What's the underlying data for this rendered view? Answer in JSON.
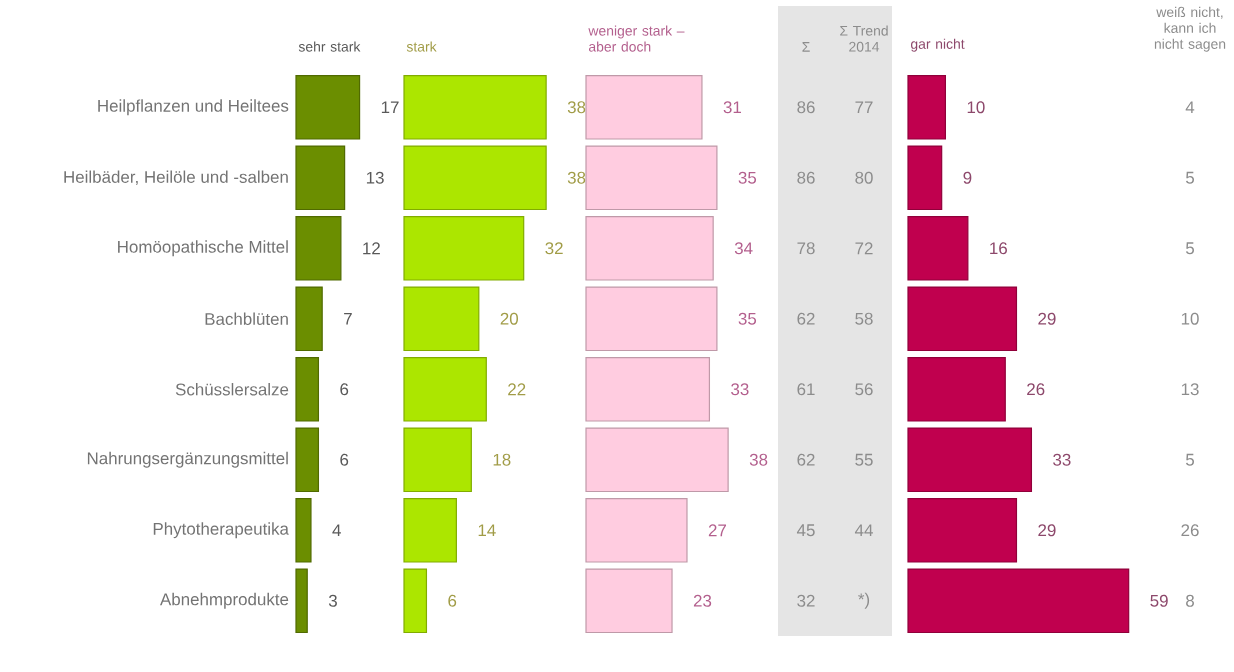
{
  "chart_data": [
    {
      "type": "bar",
      "orientation": "horizontal",
      "title": "sehr stark",
      "categories": [
        "Heilpflanzen und Heiltees",
        "Heilbäder, Heilöle und -salben",
        "Homöopathische Mittel",
        "Bachblüten",
        "Schüsslersalze",
        "Nahrungsergänzungsmittel",
        "Phytotherapeutika",
        "Abnehmprodukte"
      ],
      "values": [
        17,
        13,
        12,
        7,
        6,
        6,
        4,
        3
      ],
      "color": "#6b8e00",
      "data_labels": true,
      "tick_labels": "y"
    },
    {
      "type": "bar",
      "orientation": "horizontal",
      "title": "stark",
      "categories": [
        null,
        null,
        null,
        null,
        null,
        null,
        null,
        null
      ],
      "values": [
        38,
        38,
        32,
        20,
        22,
        18,
        14,
        6
      ],
      "color": "#ace600",
      "data_labels": true
    },
    {
      "type": "bar",
      "orientation": "horizontal",
      "title": "weniger stark – aber doch",
      "categories": [
        null,
        null,
        null,
        null,
        null,
        null,
        null,
        null
      ],
      "values": [
        31,
        35,
        34,
        35,
        33,
        38,
        27,
        23
      ],
      "color": "#ffcce0",
      "data_labels": true
    },
    {
      "type": "other",
      "title": "Σ",
      "values": [
        86,
        86,
        78,
        62,
        61,
        62,
        45,
        32
      ],
      "data_labels": true
    },
    {
      "type": "other",
      "title": "Σ Trend 2014",
      "value_labels": [
        "77",
        "80",
        "72",
        "58",
        "56",
        "55",
        "44",
        "*)"
      ]
    },
    {
      "type": "bar",
      "orientation": "horizontal",
      "title": "gar nicht",
      "categories": [
        null,
        null,
        null,
        null,
        null,
        null,
        null,
        null
      ],
      "values": [
        10,
        9,
        16,
        29,
        26,
        33,
        29,
        59
      ],
      "color": "#c0004e",
      "data_labels": true
    },
    {
      "type": "other",
      "title": "weiß nicht, kann ich nicht sagen",
      "values": [
        4,
        5,
        5,
        10,
        13,
        5,
        26,
        8
      ],
      "data_labels": true
    }
  ]
}
